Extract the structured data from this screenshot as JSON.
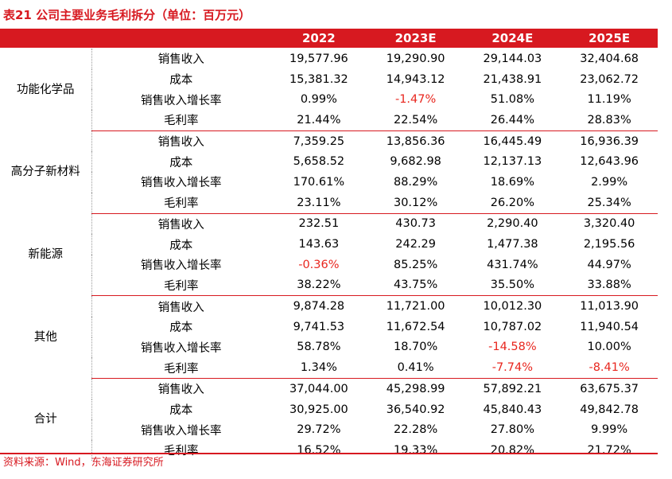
{
  "title": "表21  公司主要业务毛利拆分（单位：百万元）",
  "header": {
    "blank": "",
    "years": [
      "2022",
      "2023E",
      "2024E",
      "2025E"
    ]
  },
  "groups": [
    {
      "name": "功能化学品",
      "rows": [
        {
          "metric": "销售收入",
          "values": [
            "19,577.96",
            "19,290.90",
            "29,144.03",
            "32,404.68"
          ]
        },
        {
          "metric": "成本",
          "values": [
            "15,381.32",
            "14,943.12",
            "21,438.91",
            "23,062.72"
          ]
        },
        {
          "metric": "销售收入增长率",
          "values": [
            "0.99%",
            "-1.47%",
            "51.08%",
            "11.19%"
          ]
        },
        {
          "metric": "毛利率",
          "values": [
            "21.44%",
            "22.54%",
            "26.44%",
            "28.83%"
          ]
        }
      ]
    },
    {
      "name": "高分子新材料",
      "rows": [
        {
          "metric": "销售收入",
          "values": [
            "7,359.25",
            "13,856.36",
            "16,445.49",
            "16,936.39"
          ]
        },
        {
          "metric": "成本",
          "values": [
            "5,658.52",
            "9,682.98",
            "12,137.13",
            "12,643.96"
          ]
        },
        {
          "metric": "销售收入增长率",
          "values": [
            "170.61%",
            "88.29%",
            "18.69%",
            "2.99%"
          ]
        },
        {
          "metric": "毛利率",
          "values": [
            "23.11%",
            "30.12%",
            "26.20%",
            "25.34%"
          ]
        }
      ]
    },
    {
      "name": "新能源",
      "rows": [
        {
          "metric": "销售收入",
          "values": [
            "232.51",
            "430.73",
            "2,290.40",
            "3,320.40"
          ]
        },
        {
          "metric": "成本",
          "values": [
            "143.63",
            "242.29",
            "1,477.38",
            "2,195.56"
          ]
        },
        {
          "metric": "销售收入增长率",
          "values": [
            "-0.36%",
            "85.25%",
            "431.74%",
            "44.97%"
          ]
        },
        {
          "metric": "毛利率",
          "values": [
            "38.22%",
            "43.75%",
            "35.50%",
            "33.88%"
          ]
        }
      ]
    },
    {
      "name": "其他",
      "rows": [
        {
          "metric": "销售收入",
          "values": [
            "9,874.28",
            "11,721.00",
            "10,012.30",
            "11,013.90"
          ]
        },
        {
          "metric": "成本",
          "values": [
            "9,741.53",
            "11,672.54",
            "10,787.02",
            "11,940.54"
          ]
        },
        {
          "metric": "销售收入增长率",
          "values": [
            "58.78%",
            "18.70%",
            "-14.58%",
            "10.00%"
          ]
        },
        {
          "metric": "毛利率",
          "values": [
            "1.34%",
            "0.41%",
            "-7.74%",
            "-8.41%"
          ]
        }
      ]
    },
    {
      "name": "合计",
      "rows": [
        {
          "metric": "销售收入",
          "values": [
            "37,044.00",
            "45,298.99",
            "57,892.21",
            "63,675.37"
          ]
        },
        {
          "metric": "成本",
          "values": [
            "30,925.00",
            "36,540.92",
            "45,840.43",
            "49,842.78"
          ]
        },
        {
          "metric": "销售收入增长率",
          "values": [
            "29.72%",
            "22.28%",
            "27.80%",
            "9.99%"
          ]
        },
        {
          "metric": "毛利率",
          "values": [
            "16.52%",
            "19.33%",
            "20.82%",
            "21.72%"
          ]
        }
      ]
    }
  ],
  "colors": {
    "accent": "#d71920",
    "negative": "#e8261e"
  },
  "source": "资料来源：Wind，东海证券研究所"
}
